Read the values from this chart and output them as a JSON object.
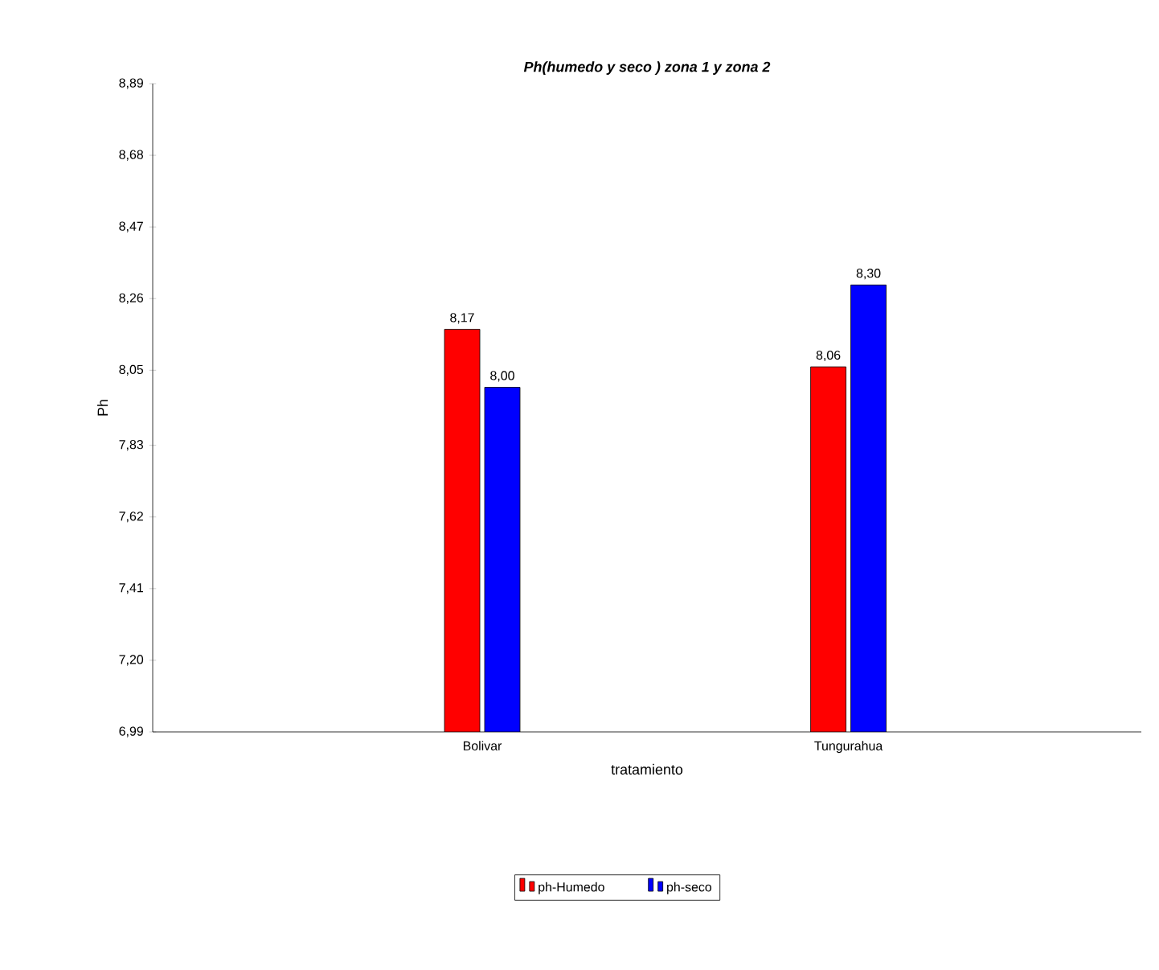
{
  "chart_data": {
    "type": "bar",
    "title": "Ph(humedo y seco ) zona 1 y zona 2",
    "xlabel": "tratamiento",
    "ylabel": "Ph",
    "categories": [
      "Bolivar",
      "Tungurahua"
    ],
    "series": [
      {
        "name": "ph-Humedo",
        "color": "#ff0000",
        "values": [
          8.17,
          8.06
        ],
        "value_labels": [
          "8,17",
          "8,06"
        ]
      },
      {
        "name": "ph-seco",
        "color": "#0000ff",
        "values": [
          8.0,
          8.3
        ],
        "value_labels": [
          "8,00",
          "8,30"
        ]
      }
    ],
    "ylim": [
      6.99,
      8.89
    ],
    "yticks": [
      {
        "value": 6.99,
        "label": "6,99"
      },
      {
        "value": 7.2,
        "label": "7,20"
      },
      {
        "value": 7.41,
        "label": "7,41"
      },
      {
        "value": 7.62,
        "label": "7,62"
      },
      {
        "value": 7.83,
        "label": "7,83"
      },
      {
        "value": 8.05,
        "label": "8,05"
      },
      {
        "value": 8.26,
        "label": "8,26"
      },
      {
        "value": 8.47,
        "label": "8,47"
      },
      {
        "value": 8.68,
        "label": "8,68"
      },
      {
        "value": 8.89,
        "label": "8,89"
      }
    ],
    "legend": "bottom",
    "grid": false
  }
}
